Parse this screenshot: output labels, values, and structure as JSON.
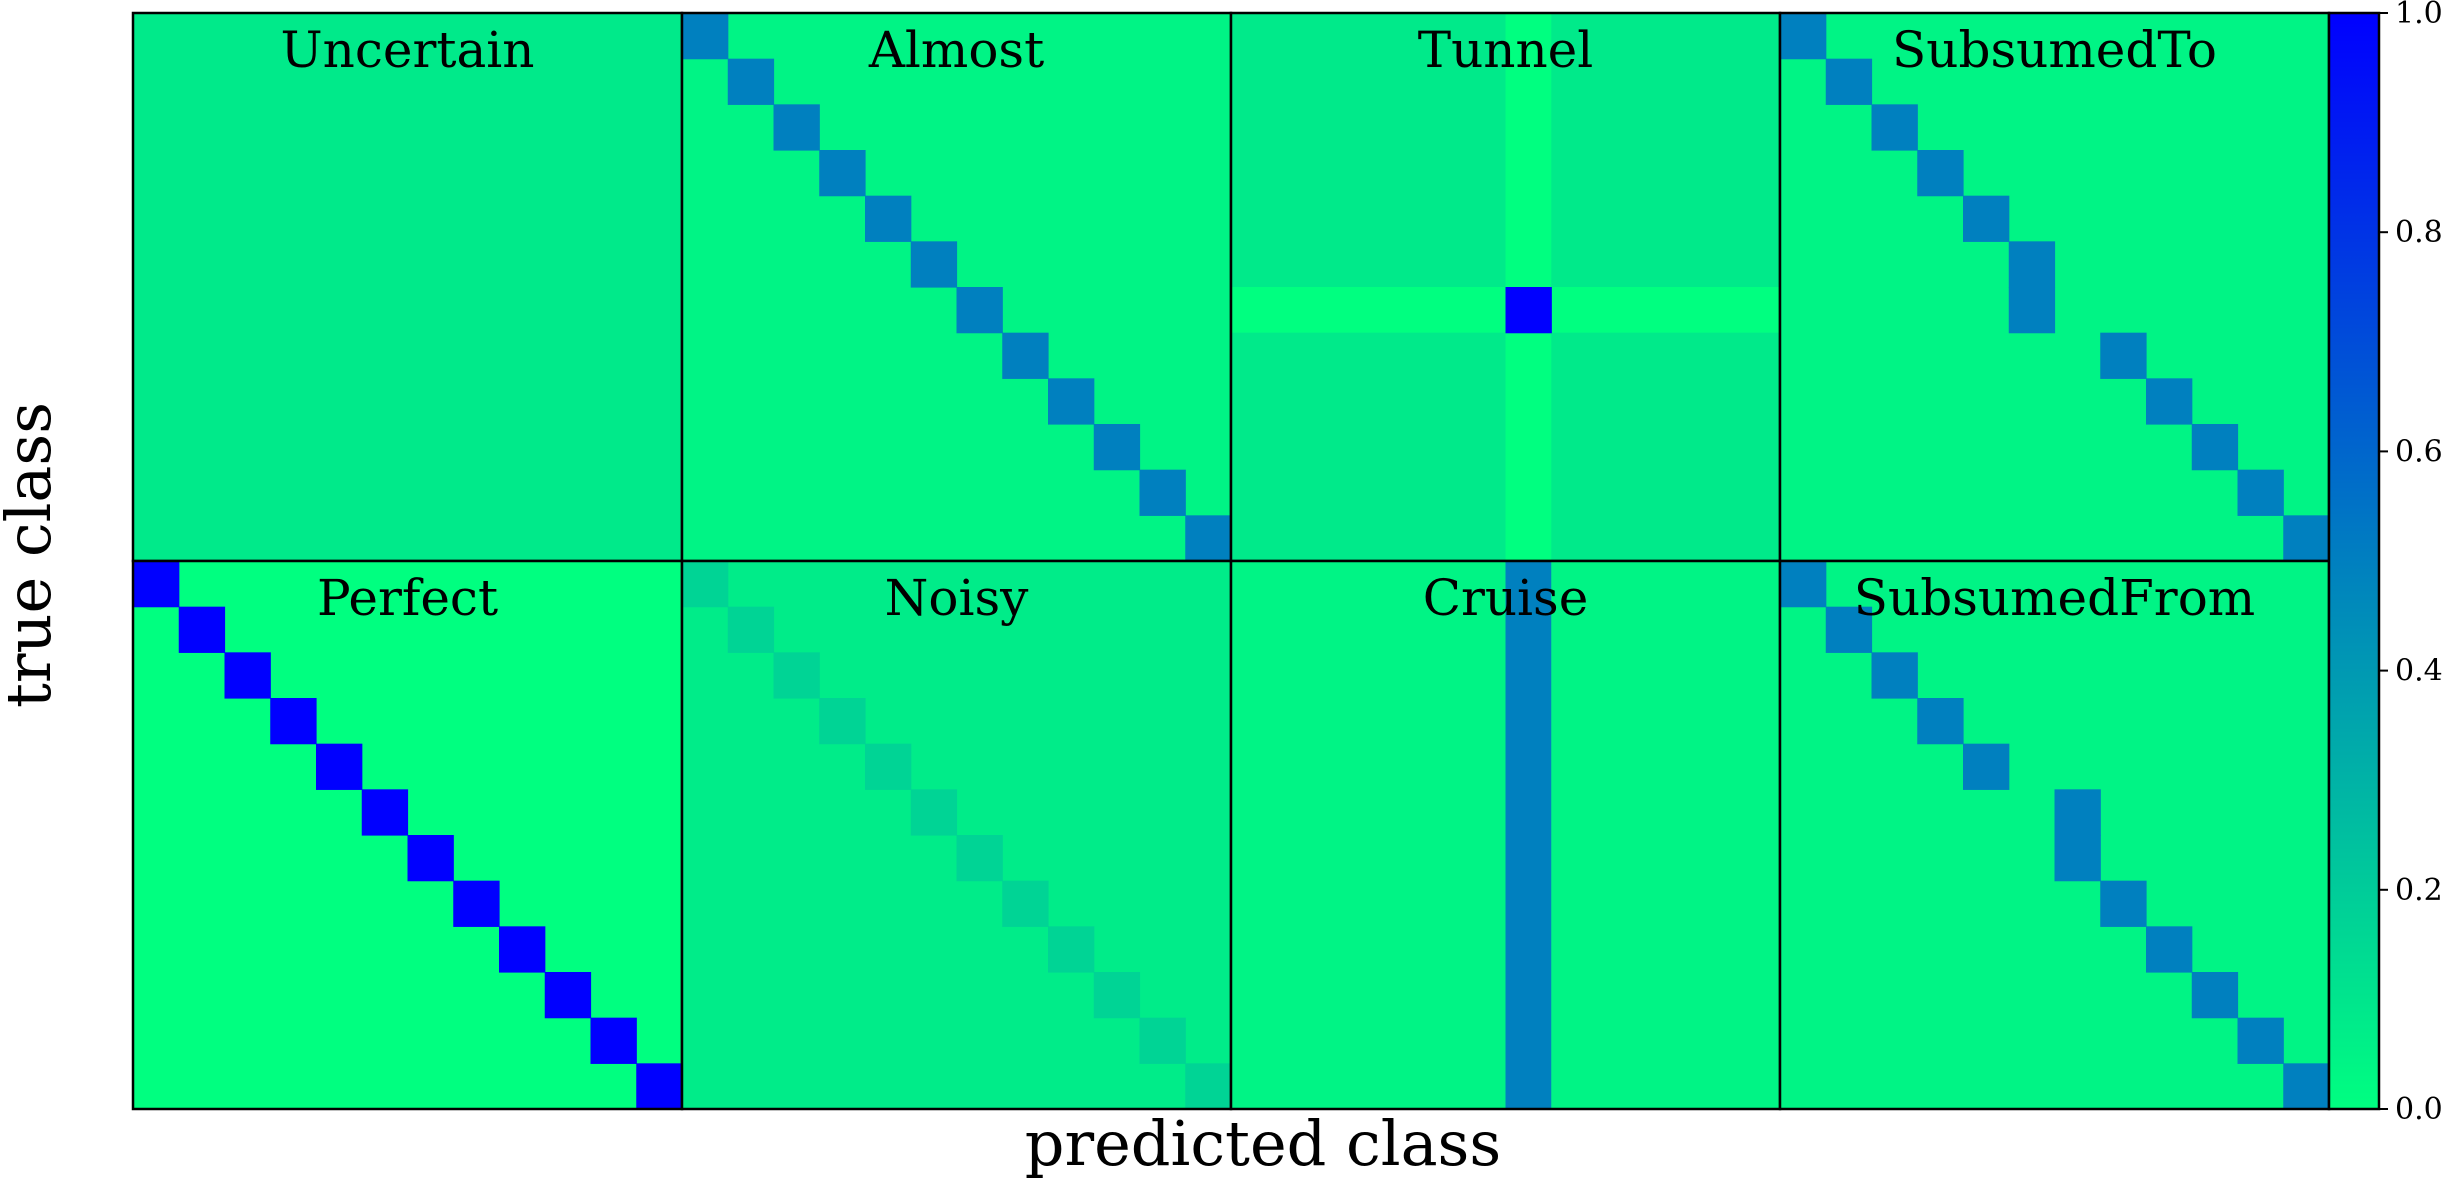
{
  "chart_data": {
    "type": "heatmap",
    "xlabel": "predicted class",
    "ylabel": "true class",
    "colormap": "winter",
    "colorbar": {
      "ticks": [
        "0.0",
        "0.2",
        "0.4",
        "0.6",
        "0.8",
        "1.0"
      ],
      "range": [
        0,
        1
      ]
    },
    "matrix_size": 12,
    "panels": [
      {
        "title": "Uncertain",
        "background": 0.083,
        "diagonal": []
      },
      {
        "title": "Almost",
        "background": 0.045,
        "diagonal": [
          {
            "row": 0,
            "col": 0,
            "v": 0.5
          },
          {
            "row": 1,
            "col": 1,
            "v": 0.5
          },
          {
            "row": 2,
            "col": 2,
            "v": 0.5
          },
          {
            "row": 3,
            "col": 3,
            "v": 0.5
          },
          {
            "row": 4,
            "col": 4,
            "v": 0.5
          },
          {
            "row": 5,
            "col": 5,
            "v": 0.5
          },
          {
            "row": 6,
            "col": 6,
            "v": 0.5
          },
          {
            "row": 7,
            "col": 7,
            "v": 0.5
          },
          {
            "row": 8,
            "col": 8,
            "v": 0.5
          },
          {
            "row": 9,
            "col": 9,
            "v": 0.5
          },
          {
            "row": 10,
            "col": 10,
            "v": 0.5
          },
          {
            "row": 11,
            "col": 11,
            "v": 0.5
          }
        ]
      },
      {
        "title": "Tunnel",
        "background": 0.083,
        "special": {
          "type": "cross",
          "row": 6,
          "col": 6,
          "center": 1.0,
          "line": 0.0
        }
      },
      {
        "title": "SubsumedTo",
        "background": 0.045,
        "diagonal": [
          {
            "row": 0,
            "col": 0,
            "v": 0.5
          },
          {
            "row": 1,
            "col": 1,
            "v": 0.5
          },
          {
            "row": 2,
            "col": 2,
            "v": 0.5
          },
          {
            "row": 3,
            "col": 3,
            "v": 0.5
          },
          {
            "row": 4,
            "col": 4,
            "v": 0.5
          },
          {
            "row": 5,
            "col": 5,
            "v": 0.5
          },
          {
            "row": 6,
            "col": 5,
            "v": 0.5
          },
          {
            "row": 7,
            "col": 7,
            "v": 0.5
          },
          {
            "row": 8,
            "col": 8,
            "v": 0.5
          },
          {
            "row": 9,
            "col": 9,
            "v": 0.5
          },
          {
            "row": 10,
            "col": 10,
            "v": 0.5
          },
          {
            "row": 11,
            "col": 11,
            "v": 0.5
          }
        ]
      },
      {
        "title": "Perfect",
        "background": 0.0,
        "diagonal": [
          {
            "row": 0,
            "col": 0,
            "v": 1.0
          },
          {
            "row": 1,
            "col": 1,
            "v": 1.0
          },
          {
            "row": 2,
            "col": 2,
            "v": 1.0
          },
          {
            "row": 3,
            "col": 3,
            "v": 1.0
          },
          {
            "row": 4,
            "col": 4,
            "v": 1.0
          },
          {
            "row": 5,
            "col": 5,
            "v": 1.0
          },
          {
            "row": 6,
            "col": 6,
            "v": 1.0
          },
          {
            "row": 7,
            "col": 7,
            "v": 1.0
          },
          {
            "row": 8,
            "col": 8,
            "v": 1.0
          },
          {
            "row": 9,
            "col": 9,
            "v": 1.0
          },
          {
            "row": 10,
            "col": 10,
            "v": 1.0
          },
          {
            "row": 11,
            "col": 11,
            "v": 1.0
          }
        ]
      },
      {
        "title": "Noisy",
        "background": 0.076,
        "diagonal": [
          {
            "row": 0,
            "col": 0,
            "v": 0.17
          },
          {
            "row": 1,
            "col": 1,
            "v": 0.17
          },
          {
            "row": 2,
            "col": 2,
            "v": 0.17
          },
          {
            "row": 3,
            "col": 3,
            "v": 0.17
          },
          {
            "row": 4,
            "col": 4,
            "v": 0.17
          },
          {
            "row": 5,
            "col": 5,
            "v": 0.17
          },
          {
            "row": 6,
            "col": 6,
            "v": 0.17
          },
          {
            "row": 7,
            "col": 7,
            "v": 0.17
          },
          {
            "row": 8,
            "col": 8,
            "v": 0.17
          },
          {
            "row": 9,
            "col": 9,
            "v": 0.17
          },
          {
            "row": 10,
            "col": 10,
            "v": 0.17
          },
          {
            "row": 11,
            "col": 11,
            "v": 0.17
          }
        ]
      },
      {
        "title": "Cruise",
        "background": 0.045,
        "special": {
          "type": "column",
          "col": 6,
          "v": 0.5
        }
      },
      {
        "title": "SubsumedFrom",
        "background": 0.045,
        "diagonal": [
          {
            "row": 0,
            "col": 0,
            "v": 0.5
          },
          {
            "row": 1,
            "col": 1,
            "v": 0.5
          },
          {
            "row": 2,
            "col": 2,
            "v": 0.5
          },
          {
            "row": 3,
            "col": 3,
            "v": 0.5
          },
          {
            "row": 4,
            "col": 4,
            "v": 0.5
          },
          {
            "row": 5,
            "col": 6,
            "v": 0.5
          },
          {
            "row": 6,
            "col": 6,
            "v": 0.5
          },
          {
            "row": 7,
            "col": 7,
            "v": 0.5
          },
          {
            "row": 8,
            "col": 8,
            "v": 0.5
          },
          {
            "row": 9,
            "col": 9,
            "v": 0.5
          },
          {
            "row": 10,
            "col": 10,
            "v": 0.5
          },
          {
            "row": 11,
            "col": 11,
            "v": 0.5
          }
        ]
      }
    ]
  }
}
